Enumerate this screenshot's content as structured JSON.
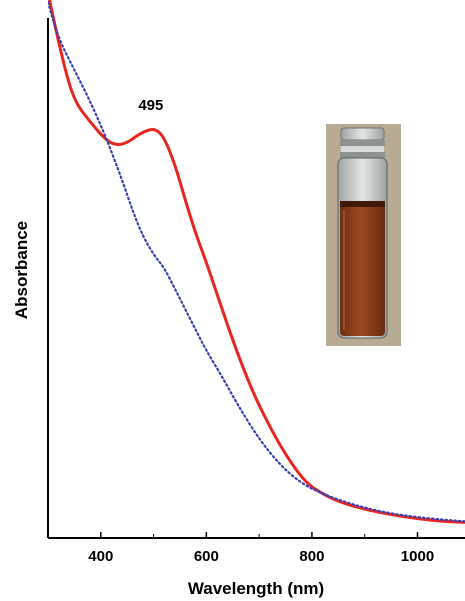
{
  "chart_data": {
    "type": "line",
    "xlabel": "Wavelength (nm)",
    "ylabel": "Absorbance",
    "xlim": [
      300,
      1090
    ],
    "ylim": [
      0,
      1.0
    ],
    "x_ticks": [
      400,
      600,
      800,
      1000
    ],
    "grid": false,
    "legend": "none",
    "annotations": [
      {
        "text": "495",
        "x": 510,
        "y": 0.815
      }
    ],
    "series": [
      {
        "color": "#e8251f",
        "style": "solid",
        "points": [
          [
            300,
            1.05
          ],
          [
            310,
            1.0
          ],
          [
            330,
            0.91
          ],
          [
            350,
            0.84
          ],
          [
            380,
            0.8
          ],
          [
            410,
            0.765
          ],
          [
            430,
            0.755
          ],
          [
            450,
            0.76
          ],
          [
            470,
            0.775
          ],
          [
            490,
            0.785
          ],
          [
            505,
            0.786
          ],
          [
            520,
            0.77
          ],
          [
            540,
            0.72
          ],
          [
            560,
            0.65
          ],
          [
            580,
            0.585
          ],
          [
            600,
            0.53
          ],
          [
            620,
            0.47
          ],
          [
            650,
            0.38
          ],
          [
            680,
            0.3
          ],
          [
            700,
            0.255
          ],
          [
            730,
            0.195
          ],
          [
            760,
            0.145
          ],
          [
            790,
            0.105
          ],
          [
            820,
            0.085
          ],
          [
            850,
            0.07
          ],
          [
            900,
            0.055
          ],
          [
            950,
            0.045
          ],
          [
            1000,
            0.037
          ],
          [
            1050,
            0.032
          ],
          [
            1090,
            0.03
          ]
        ]
      },
      {
        "color": "#3b3fb0",
        "style": "dotted",
        "points": [
          [
            300,
            1.03
          ],
          [
            320,
            0.96
          ],
          [
            350,
            0.9
          ],
          [
            380,
            0.84
          ],
          [
            410,
            0.77
          ],
          [
            440,
            0.69
          ],
          [
            460,
            0.63
          ],
          [
            480,
            0.58
          ],
          [
            500,
            0.545
          ],
          [
            520,
            0.52
          ],
          [
            540,
            0.48
          ],
          [
            560,
            0.44
          ],
          [
            580,
            0.4
          ],
          [
            600,
            0.36
          ],
          [
            630,
            0.31
          ],
          [
            660,
            0.255
          ],
          [
            700,
            0.19
          ],
          [
            740,
            0.14
          ],
          [
            780,
            0.105
          ],
          [
            820,
            0.085
          ],
          [
            860,
            0.07
          ],
          [
            900,
            0.058
          ],
          [
            950,
            0.047
          ],
          [
            1000,
            0.04
          ],
          [
            1050,
            0.035
          ],
          [
            1090,
            0.032
          ]
        ]
      }
    ]
  },
  "inset": {
    "image": "vial-photo",
    "liquid_color": "#8a3f1c",
    "glass_color": "#c9ccca",
    "background_color": "#b8ab93"
  }
}
